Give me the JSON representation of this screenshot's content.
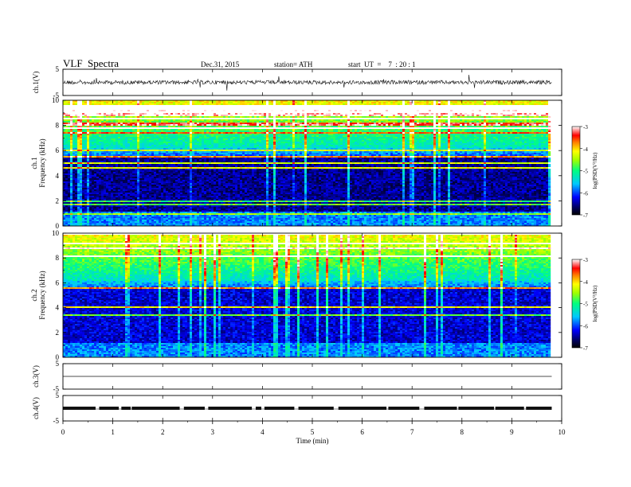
{
  "header": {
    "title": "VLF  Spectra",
    "date": "Dec.31, 2015",
    "station": "station= ATH",
    "start": "start  UT  =    7  : 20 : 1"
  },
  "chart_data": [
    {
      "type": "line",
      "ylabel": "ch.1(V)",
      "ylim": [
        -5,
        5
      ],
      "yticks": [
        "5",
        "-5"
      ],
      "xlim": [
        0,
        10
      ]
    },
    {
      "type": "heatmap",
      "ylabel_top": "ch.1",
      "ylabel": "Frequency  (kHz)",
      "ylim": [
        0,
        10
      ],
      "yticks": [
        "0",
        "2",
        "4",
        "6",
        "8",
        "10"
      ],
      "xlim": [
        0,
        10
      ],
      "data_end_min": 9.8,
      "colorbar": {
        "label": "log(PSD(V²/Hz)",
        "range": [
          -7,
          -3
        ],
        "ticks": [
          "-3",
          "-4",
          "-5",
          "-6",
          "-7"
        ]
      }
    },
    {
      "type": "heatmap",
      "ylabel_top": "ch.2",
      "ylabel": "Frequency  (kHz)",
      "ylim": [
        0,
        10
      ],
      "yticks": [
        "0",
        "2",
        "4",
        "6",
        "8",
        "10"
      ],
      "xlim": [
        0,
        10
      ],
      "data_end_min": 9.8,
      "colorbar": {
        "label": "log(PSD(V²/Hz)",
        "range": [
          -7,
          -3
        ],
        "ticks": [
          "-3",
          "-4",
          "-5",
          "-6",
          "-7"
        ]
      }
    },
    {
      "type": "line",
      "ylabel": "ch.3(V)",
      "ylim": [
        -5,
        5
      ],
      "yticks": [
        "5",
        "-5"
      ],
      "xlim": [
        0,
        10
      ]
    },
    {
      "type": "line",
      "ylabel": "ch.4(V)",
      "ylim": [
        -5,
        5
      ],
      "yticks": [
        "5",
        "-5"
      ],
      "xlim": [
        0,
        10
      ]
    }
  ],
  "x_axis": {
    "label": "Time  (min)",
    "ticks": [
      "0",
      "1",
      "2",
      "3",
      "4",
      "5",
      "6",
      "7",
      "8",
      "9",
      "10"
    ]
  },
  "colors": {
    "trace": "#111111",
    "spec_low": "#000814",
    "spec_high": "#ff0000"
  }
}
